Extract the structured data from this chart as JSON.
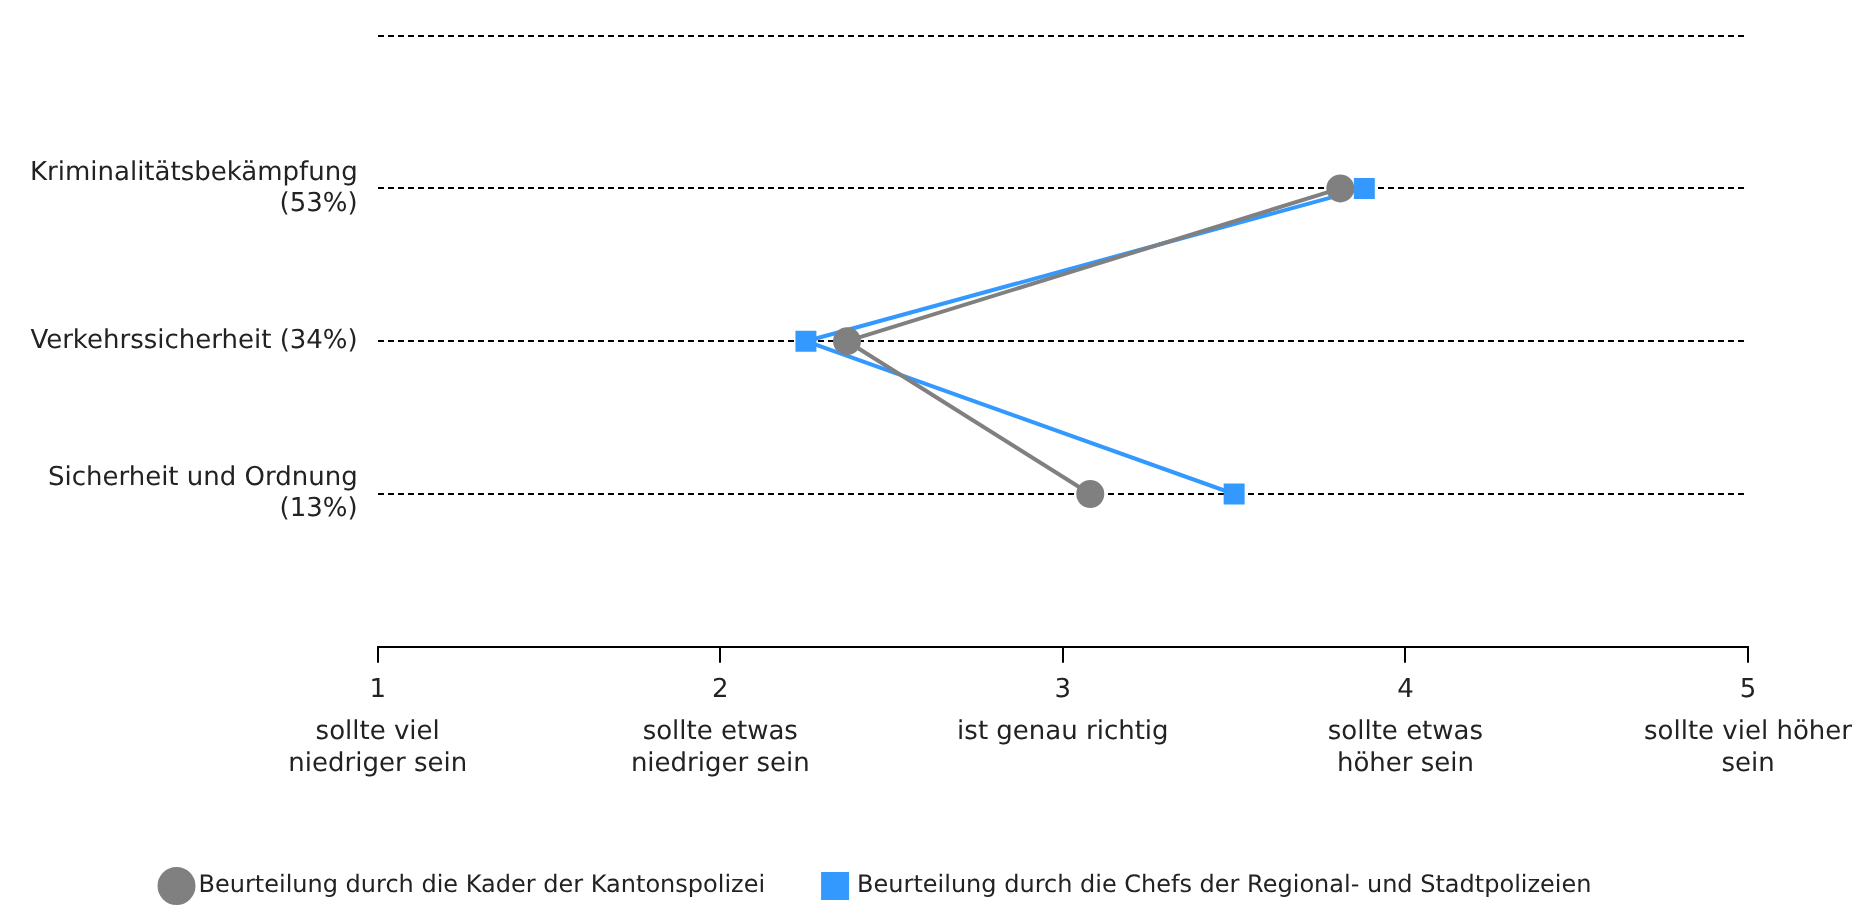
{
  "chart_data": {
    "type": "line",
    "orientation": "horizontal",
    "categories": [
      null,
      "Kriminalitätsbekämpfung\n(53%)",
      "Verkehrssicherheit (34%)",
      "Sicherheit und Ordnung\n(13%)",
      null
    ],
    "series": [
      {
        "name": "Beurteilung durch die Kader der Kantonspolizei",
        "color": "#808080",
        "marker": "circle",
        "values": [
          null,
          3.81,
          2.37,
          3.08,
          null
        ]
      },
      {
        "name": "Beurteilung durch die Chefs der Regional- und Stadtpolizeien",
        "color": "#3399ff",
        "marker": "square",
        "values": [
          null,
          3.88,
          2.25,
          3.5,
          null
        ]
      }
    ],
    "xlim": [
      1,
      5
    ],
    "xticks": [
      1,
      2,
      3,
      4,
      5
    ],
    "annotations": [
      "sollte viel\nniedriger sein",
      "sollte etwas\nniedriger sein",
      "ist genau richtig",
      "sollte etwas\nhöher sein",
      "sollte viel höher\nsein"
    ],
    "grid": "y",
    "legend": "bottom",
    "line_style": "solid"
  }
}
